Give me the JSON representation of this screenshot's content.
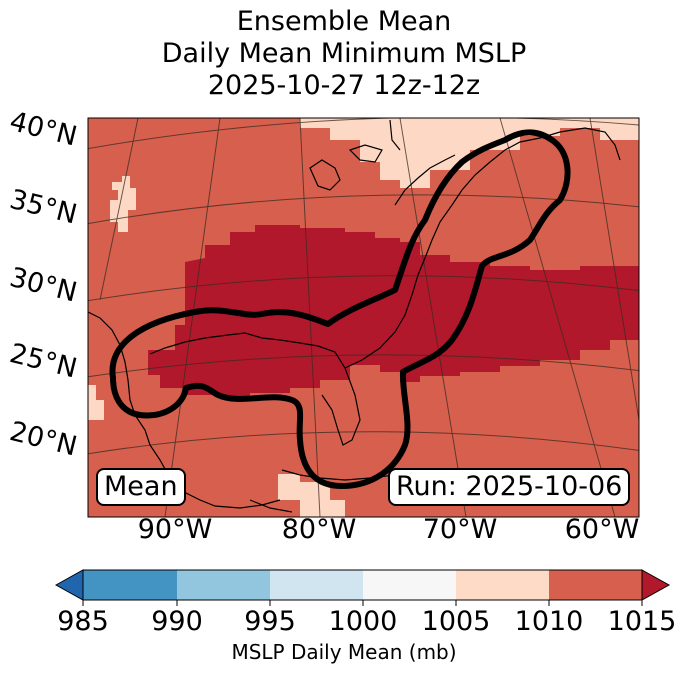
{
  "title": {
    "line1": "Ensemble Mean",
    "line2": "Daily Mean Minimum MSLP",
    "line3": "2025-10-27 12z-12z"
  },
  "map": {
    "lat_labels": [
      "40°N",
      "35°N",
      "30°N",
      "25°N",
      "20°N"
    ],
    "lon_labels": [
      "90°W",
      "80°W",
      "70°W",
      "60°W"
    ],
    "mean_label": "Mean",
    "run_label": "Run: 2025-10-06",
    "colors": {
      "c1005_1010": "#fdd9c5",
      "c1010_1015": "#d6604d",
      "c_above": "#b2182b",
      "contour": "#000000",
      "coast": "#000000"
    }
  },
  "colorbar": {
    "ticks": [
      "985",
      "990",
      "995",
      "1000",
      "1005",
      "1010",
      "1015"
    ],
    "label": "MSLP Daily Mean (mb)",
    "colors": [
      "#2166ac",
      "#4393c3",
      "#92c5de",
      "#d1e5f0",
      "#f7f7f7",
      "#fddbc7",
      "#d6604d",
      "#b2182b"
    ]
  }
}
